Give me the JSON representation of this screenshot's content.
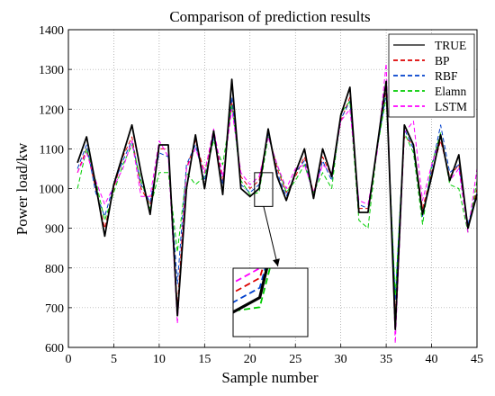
{
  "chart_data": {
    "type": "line",
    "title": "Comparison of prediction results",
    "xlabel": "Sample number",
    "ylabel": "Power load/kw",
    "xlim": [
      0,
      45
    ],
    "ylim": [
      600,
      1400
    ],
    "x_ticks": [
      0,
      5,
      10,
      15,
      20,
      25,
      30,
      35,
      40,
      45
    ],
    "y_ticks": [
      600,
      700,
      800,
      900,
      1000,
      1100,
      1200,
      1300,
      1400
    ],
    "grid": true,
    "legend_position": "top-right",
    "x": [
      1,
      2,
      3,
      4,
      5,
      6,
      7,
      8,
      9,
      10,
      11,
      12,
      13,
      14,
      15,
      16,
      17,
      18,
      19,
      20,
      21,
      22,
      23,
      24,
      25,
      26,
      27,
      28,
      29,
      30,
      31,
      32,
      33,
      34,
      35,
      36,
      37,
      38,
      39,
      40,
      41,
      42,
      43,
      44,
      45
    ],
    "series": [
      {
        "name": "TRUE",
        "color": "#000000",
        "dash": "solid",
        "values": [
          1065,
          1130,
          1010,
          880,
          1010,
          1085,
          1160,
          1040,
          935,
          1110,
          1110,
          680,
          1000,
          1135,
          1000,
          1145,
          985,
          1275,
          1000,
          980,
          1000,
          1150,
          1030,
          970,
          1040,
          1100,
          975,
          1100,
          1030,
          1185,
          1255,
          940,
          940,
          1105,
          1270,
          645,
          1160,
          1110,
          935,
          1030,
          1135,
          1020,
          1085,
          900,
          985
        ]
      },
      {
        "name": "BP",
        "color": "#dd0000",
        "dash": "dashed",
        "values": [
          1040,
          1100,
          1000,
          900,
          1000,
          1080,
          1130,
          1000,
          960,
          1100,
          1100,
          700,
          1050,
          1120,
          1040,
          1140,
          1020,
          1220,
          1030,
          1000,
          1020,
          1140,
          1050,
          990,
          1030,
          1080,
          990,
          1080,
          1030,
          1170,
          1230,
          950,
          950,
          1100,
          1250,
          680,
          1130,
          1110,
          950,
          1040,
          1120,
          1030,
          1060,
          900,
          1000
        ]
      },
      {
        "name": "RBF",
        "color": "#0040cc",
        "dash": "dashed",
        "values": [
          1050,
          1110,
          990,
          930,
          1010,
          1070,
          1120,
          1010,
          965,
          1090,
          1080,
          760,
          1060,
          1110,
          1020,
          1130,
          1010,
          1230,
          1010,
          990,
          1010,
          1140,
          1040,
          980,
          1040,
          1070,
          980,
          1070,
          1020,
          1175,
          1220,
          960,
          950,
          1100,
          1240,
          720,
          1150,
          1100,
          930,
          1050,
          1160,
          1040,
          1060,
          910,
          990
        ]
      },
      {
        "name": "Elamn",
        "color": "#00cc00",
        "dash": "dashed",
        "values": [
          1000,
          1100,
          1020,
          920,
          990,
          1060,
          1110,
          1020,
          950,
          1040,
          1040,
          840,
          1040,
          1010,
          1030,
          1120,
          1060,
          1210,
          1020,
          985,
          990,
          1130,
          1060,
          990,
          1020,
          1060,
          990,
          1040,
          1000,
          1190,
          1220,
          920,
          900,
          1100,
          1230,
          730,
          1140,
          1090,
          910,
          1060,
          1140,
          1010,
          1000,
          890,
          1020
        ]
      },
      {
        "name": "LSTM",
        "color": "#ff00ff",
        "dash": "dashed",
        "values": [
          1040,
          1090,
          1020,
          960,
          1005,
          1050,
          1120,
          980,
          980,
          1120,
          1080,
          660,
          1050,
          1100,
          1040,
          1150,
          1030,
          1200,
          1040,
          1010,
          1030,
          1130,
          1060,
          1000,
          1050,
          1060,
          990,
          1060,
          1040,
          1170,
          1200,
          970,
          960,
          1090,
          1315,
          610,
          1140,
          1170,
          970,
          1060,
          1130,
          1020,
          1050,
          890,
          1050
        ]
      }
    ]
  }
}
